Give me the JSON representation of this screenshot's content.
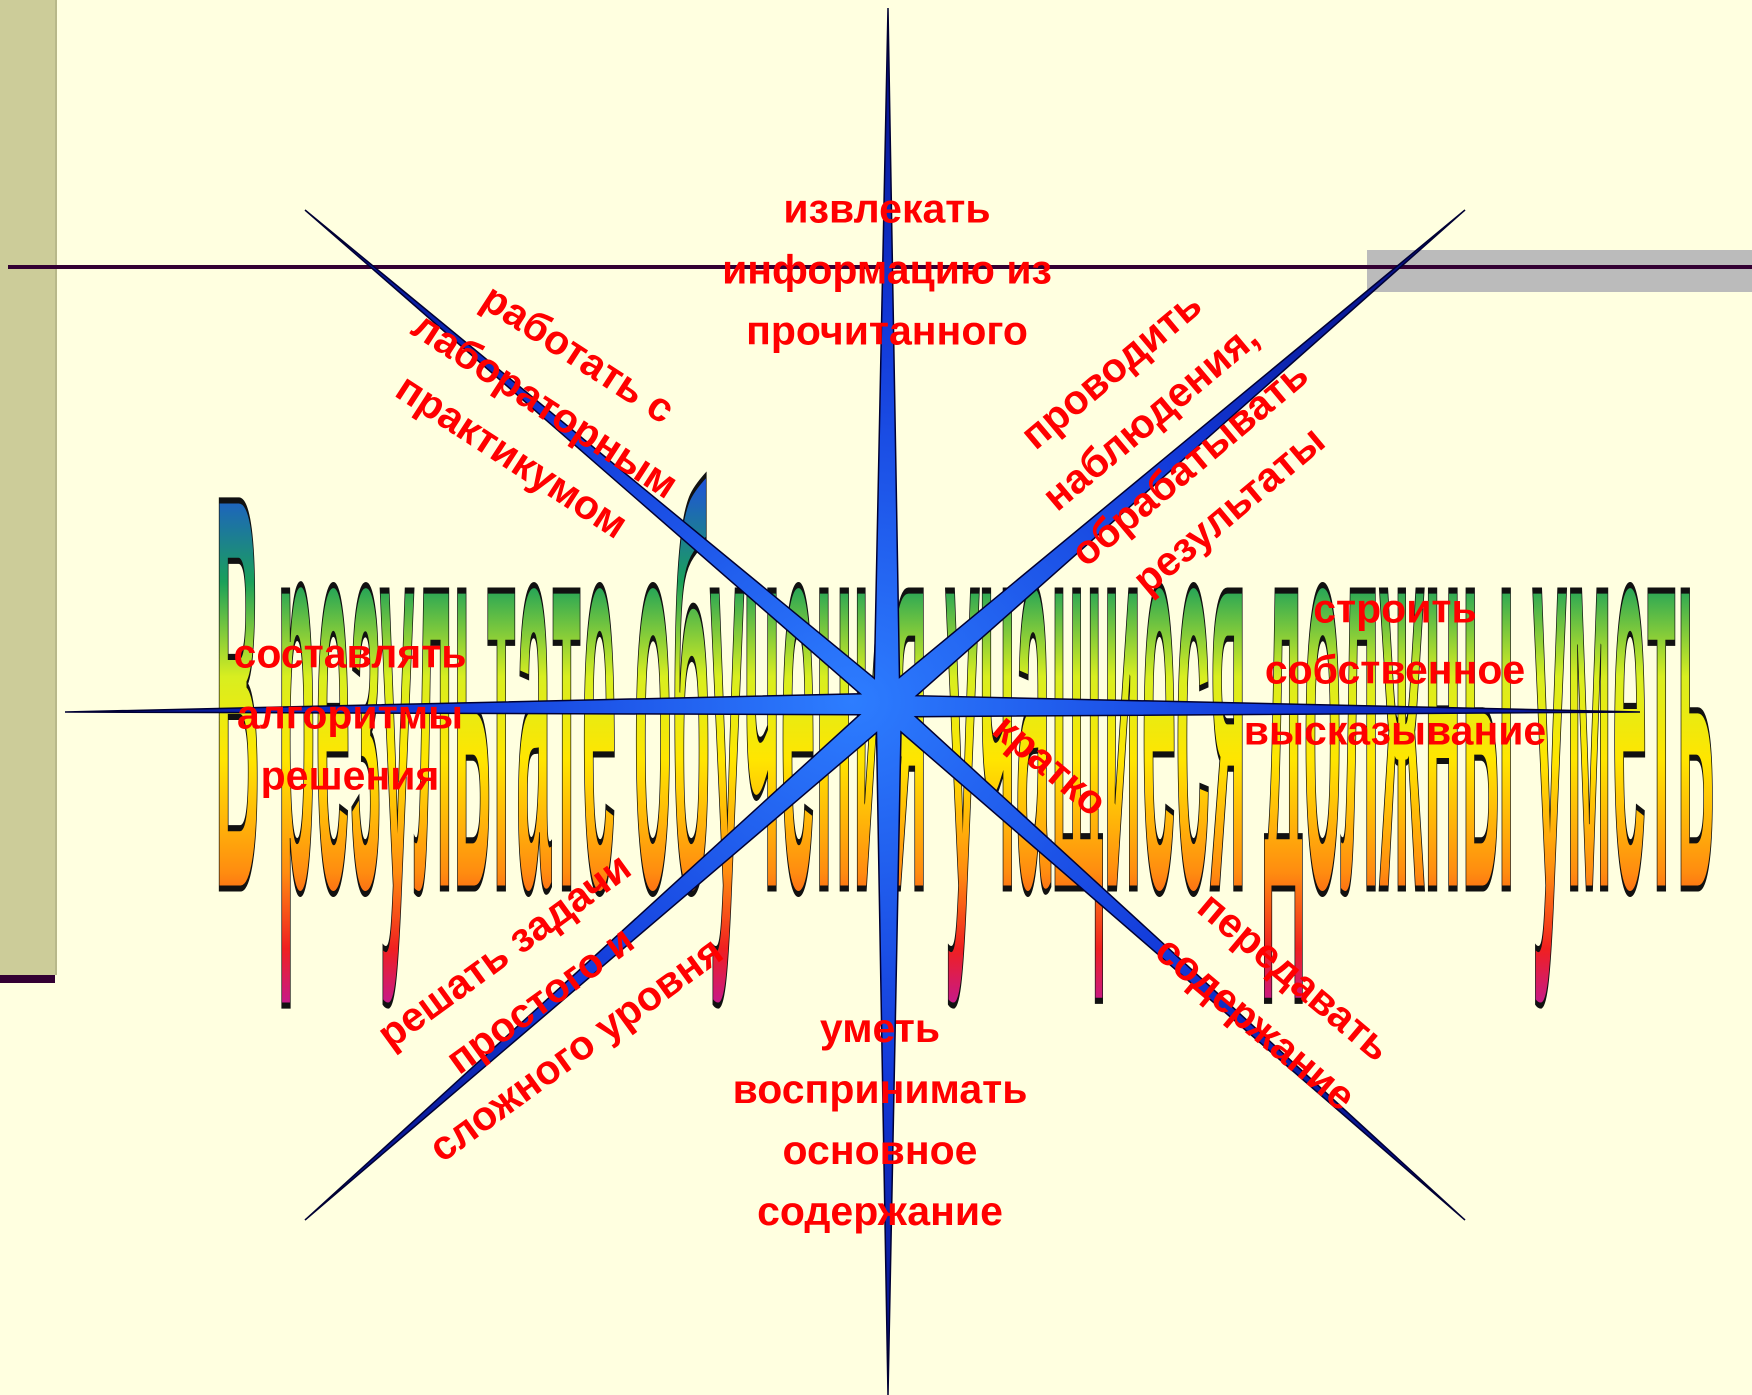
{
  "wordart_title": "В результате обучения учащиеся должны уметь",
  "colors": {
    "background": "#ffffe0",
    "sidebar": "#cccc99",
    "line": "#330033",
    "label": "#ff0000",
    "star": "#0a2fd0"
  },
  "skills": [
    "извлекать\nинформацию из\nпрочитанного",
    "работать с\nлабораторным\nпрактикумом",
    "проводить\nнаблюдения,\nобрабатывать\nрезультаты",
    "составлять\nалгоритмы\nрешения",
    "строить\nсобственное\nвысказывание",
    "кратко",
    "решать задачи\nпростого и\nсложного уровня",
    "передавать\nсодержание",
    "уметь\nвоспринимать\nосновное\nсодержание"
  ]
}
